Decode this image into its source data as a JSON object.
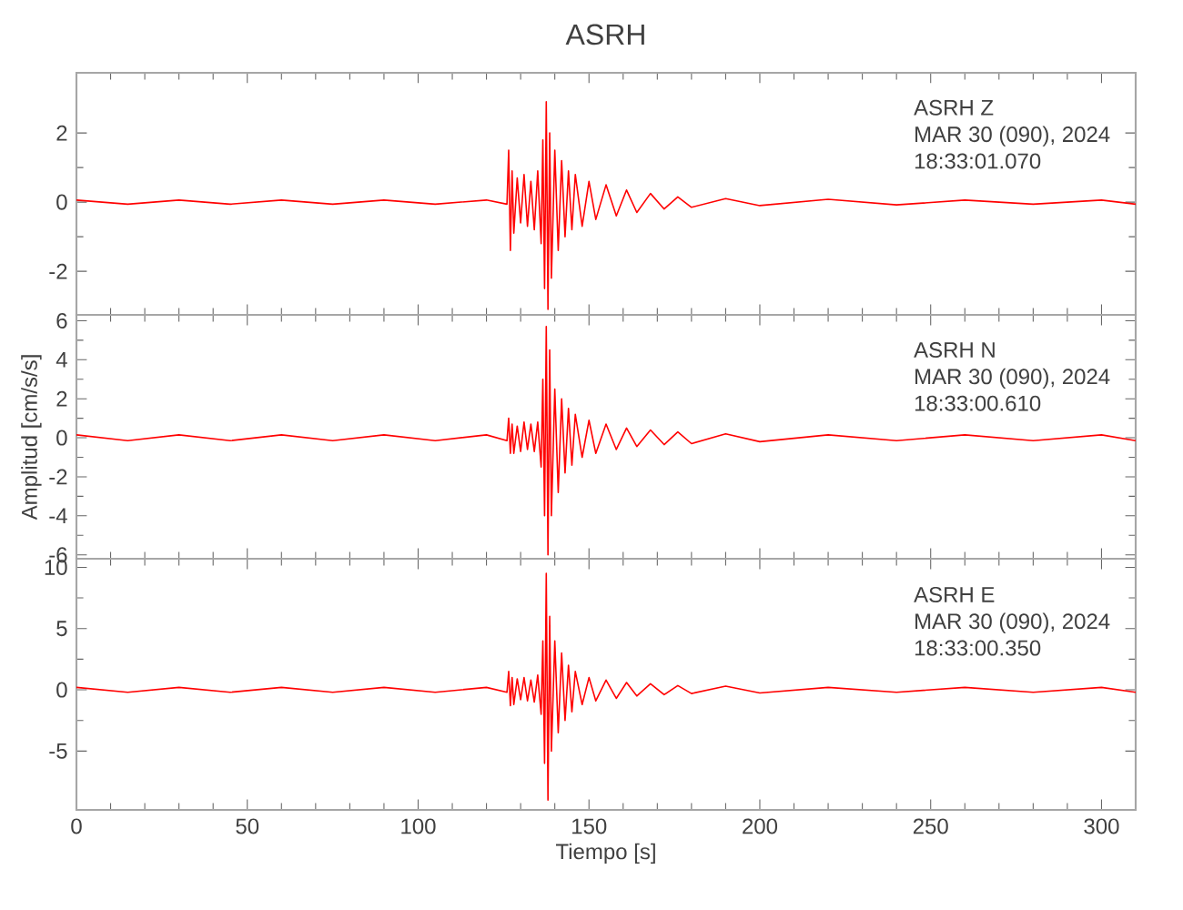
{
  "chart_data": [
    {
      "type": "line",
      "title": "ASRH",
      "annotations": [
        "ASRH Z",
        "MAR 30 (090), 2024",
        "18:33:01.070"
      ],
      "xlim": [
        0,
        310
      ],
      "xticks": [
        0,
        50,
        100,
        150,
        200,
        250,
        300
      ],
      "ylim": [
        -3.26,
        3.74
      ],
      "yticks": [
        -2,
        0,
        2
      ],
      "tick_labels": "y",
      "series": [
        {
          "color": "#ff0000",
          "x": [
            0,
            15,
            30,
            45,
            60,
            75,
            90,
            105,
            120,
            126,
            126.5,
            127,
            127.5,
            128,
            129,
            130,
            131,
            132,
            133,
            134,
            135,
            136,
            136.5,
            137,
            137.5,
            138,
            138.5,
            139,
            140,
            141,
            142,
            143,
            144,
            145,
            146,
            148,
            150,
            152,
            155,
            158,
            161,
            164,
            168,
            172,
            176,
            180,
            190,
            200,
            220,
            240,
            260,
            280,
            300,
            310
          ],
          "values": [
            0.06,
            -0.06,
            0.06,
            -0.06,
            0.06,
            -0.06,
            0.06,
            -0.06,
            0.06,
            -0.06,
            1.5,
            -1.4,
            0.9,
            -0.9,
            0.7,
            -0.6,
            0.8,
            -0.7,
            0.6,
            -0.8,
            0.9,
            -1.2,
            1.8,
            -2.5,
            2.9,
            -3.1,
            2.0,
            -2.2,
            1.5,
            -1.4,
            1.2,
            -1.0,
            0.9,
            -0.8,
            0.8,
            -0.7,
            0.6,
            -0.5,
            0.5,
            -0.4,
            0.35,
            -0.3,
            0.25,
            -0.2,
            0.15,
            -0.15,
            0.1,
            -0.1,
            0.08,
            -0.08,
            0.06,
            -0.06,
            0.06,
            -0.06
          ]
        }
      ]
    },
    {
      "type": "line",
      "ylabel": "Amplitud [cm/s/s]",
      "annotations": [
        "ASRH N",
        "MAR 30 (090), 2024",
        "18:33:00.610"
      ],
      "xlim": [
        0,
        310
      ],
      "xticks": [
        0,
        50,
        100,
        150,
        200,
        250,
        300
      ],
      "ylim": [
        -6.2,
        6.3
      ],
      "yticks": [
        -6,
        -4,
        -2,
        0,
        2,
        4,
        6
      ],
      "tick_labels": "y",
      "series": [
        {
          "color": "#ff0000",
          "x": [
            0,
            15,
            30,
            45,
            60,
            75,
            90,
            105,
            120,
            126,
            126.5,
            127,
            127.5,
            128,
            129,
            130,
            131,
            132,
            133,
            134,
            135,
            136,
            136.5,
            137,
            137.5,
            138,
            138.5,
            139,
            140,
            141,
            142,
            143,
            144,
            145,
            146,
            148,
            150,
            152,
            155,
            158,
            161,
            164,
            168,
            172,
            176,
            180,
            190,
            200,
            220,
            240,
            260,
            280,
            300,
            310
          ],
          "values": [
            0.15,
            -0.15,
            0.15,
            -0.15,
            0.15,
            -0.15,
            0.15,
            -0.15,
            0.15,
            -0.15,
            1.0,
            -0.8,
            0.7,
            -0.8,
            0.6,
            -0.7,
            0.8,
            -0.6,
            0.7,
            -0.7,
            0.8,
            -1.5,
            3.0,
            -4.0,
            5.7,
            -6.0,
            4.5,
            -4.0,
            2.5,
            -2.8,
            2.0,
            -1.8,
            1.5,
            -1.4,
            1.2,
            -1.0,
            0.9,
            -0.8,
            0.7,
            -0.6,
            0.5,
            -0.45,
            0.4,
            -0.35,
            0.3,
            -0.3,
            0.2,
            -0.2,
            0.15,
            -0.15,
            0.15,
            -0.15,
            0.15,
            -0.15
          ]
        }
      ]
    },
    {
      "type": "line",
      "xlabel": "Tiempo [s]",
      "annotations": [
        "ASRH E",
        "MAR 30 (090), 2024",
        "18:33:00.350"
      ],
      "xlim": [
        0,
        310
      ],
      "xticks": [
        0,
        50,
        100,
        150,
        200,
        250,
        300
      ],
      "ylim": [
        -9.8,
        10.7
      ],
      "yticks": [
        -5,
        0,
        5,
        10
      ],
      "series": [
        {
          "color": "#ff0000",
          "x": [
            0,
            15,
            30,
            45,
            60,
            75,
            90,
            105,
            120,
            126,
            126.5,
            127,
            127.5,
            128,
            129,
            130,
            131,
            132,
            133,
            134,
            135,
            136,
            136.5,
            137,
            137.5,
            138,
            138.5,
            139,
            140,
            141,
            142,
            143,
            144,
            145,
            146,
            148,
            150,
            152,
            155,
            158,
            161,
            164,
            168,
            172,
            176,
            180,
            190,
            200,
            220,
            240,
            260,
            280,
            300,
            310
          ],
          "values": [
            0.2,
            -0.2,
            0.2,
            -0.2,
            0.2,
            -0.2,
            0.2,
            -0.2,
            0.2,
            -0.2,
            1.5,
            -1.3,
            1.0,
            -1.2,
            0.9,
            -0.8,
            1.0,
            -0.9,
            0.8,
            -1.0,
            1.2,
            -2.0,
            4.0,
            -6.0,
            9.5,
            -9.0,
            6.0,
            -5.0,
            4.0,
            -3.5,
            3.0,
            -2.5,
            2.0,
            -1.8,
            1.5,
            -1.2,
            1.0,
            -0.9,
            0.8,
            -0.7,
            0.6,
            -0.5,
            0.5,
            -0.4,
            0.35,
            -0.3,
            0.3,
            -0.25,
            0.2,
            -0.2,
            0.2,
            -0.2,
            0.2,
            -0.2
          ]
        }
      ]
    }
  ]
}
